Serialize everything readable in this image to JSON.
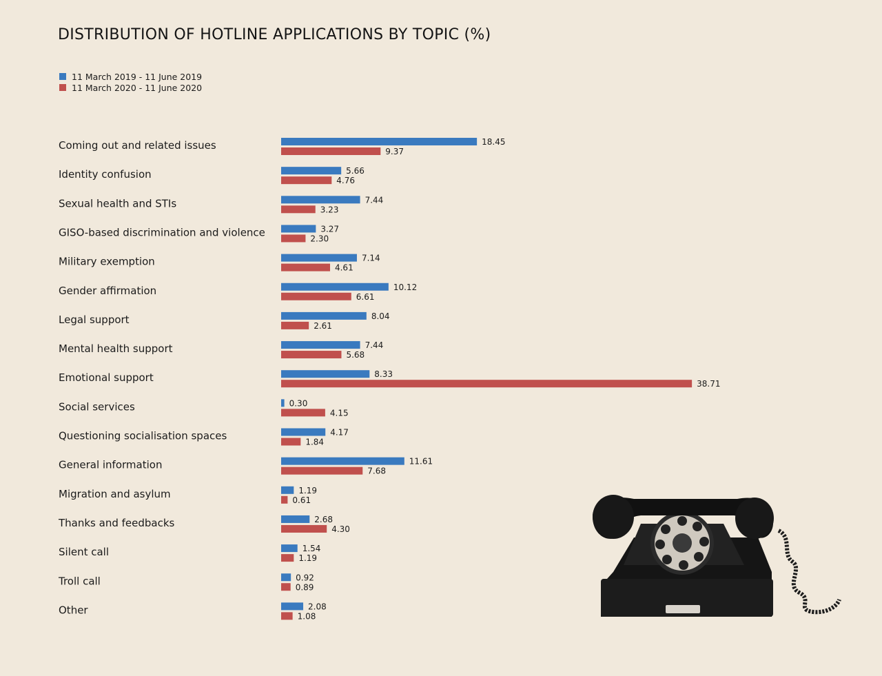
{
  "chart_data": {
    "type": "bar",
    "orientation": "horizontal",
    "title": "DISTRIBUTION OF HOTLINE APPLICATIONS BY TOPIC (%)",
    "xlabel": "",
    "ylabel": "",
    "legend_position": "top-left",
    "grid": false,
    "categories": [
      "Coming out and related issues",
      "Identity confusion",
      "Sexual health and STIs",
      "GISO-based discrimination and violence",
      "Military exemption",
      "Gender affirmation",
      "Legal support",
      "Mental health support",
      "Emotional support",
      "Social services",
      "Questioning socialisation spaces",
      "General information",
      "Migration and asylum",
      "Thanks and feedbacks",
      "Silent call",
      "Troll call",
      "Other"
    ],
    "series": [
      {
        "name": "11 March 2019 - 11 June 2019",
        "color": "#3a7abf",
        "values": [
          18.45,
          5.66,
          7.44,
          3.27,
          7.14,
          10.12,
          8.04,
          7.44,
          8.33,
          0.3,
          4.17,
          11.61,
          1.19,
          2.68,
          1.54,
          0.92,
          2.08
        ],
        "labels": [
          "18.45",
          "5.66",
          "7.44",
          "3.27",
          "7.14",
          "10.12",
          "8.04",
          "7.44",
          "8.33",
          "0.30",
          "4.17",
          "11.61",
          "1.19",
          "2.68",
          "1.54",
          "0.92",
          "2.08"
        ]
      },
      {
        "name": "11 March 2020 - 11 June 2020",
        "color": "#c0504d",
        "values": [
          9.37,
          4.76,
          3.23,
          2.3,
          4.61,
          6.61,
          2.61,
          5.68,
          38.71,
          4.15,
          1.84,
          7.68,
          0.61,
          4.3,
          1.19,
          0.89,
          1.08
        ],
        "labels": [
          "9.37",
          "4.76",
          "3.23",
          "2.30",
          "4.61",
          "6.61",
          "2.61",
          "5.68",
          "38.71",
          "4.15",
          "1.84",
          "7.68",
          "0.61",
          "4.30",
          "1.19",
          "0.89",
          "1.08"
        ]
      }
    ],
    "xlim": [
      0,
      40
    ]
  },
  "decor": {
    "illustration": "rotary-telephone-icon"
  }
}
